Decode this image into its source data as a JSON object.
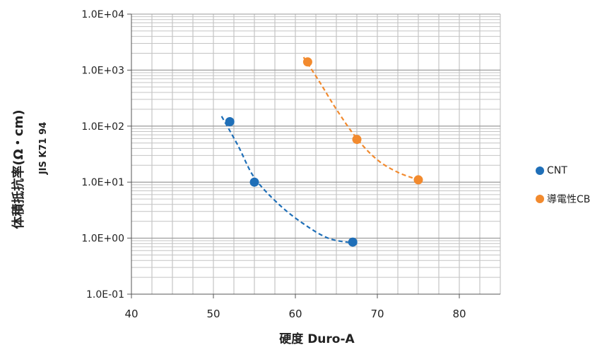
{
  "chart_data": {
    "type": "scatter",
    "ylabel": "体積抵抗率(Ω・cm)",
    "ylabel_sub": "JIS K71 94",
    "xlabel": "硬度 Duro-A",
    "xlim": [
      40,
      85
    ],
    "ylim": [
      0.1,
      10000
    ],
    "yscale": "log",
    "x_ticks": [
      "40",
      "50",
      "60",
      "70",
      "80"
    ],
    "y_ticks": [
      "1.0E-01",
      "1.0E+00",
      "1.0E+01",
      "1.0E+02",
      "1.0E+03",
      "1.0E+04"
    ],
    "grid": true,
    "legend_position": "right",
    "series": [
      {
        "name": "CNT",
        "color": "#1f6fb8",
        "points": [
          [
            52,
            120
          ],
          [
            55,
            10
          ],
          [
            67,
            0.85
          ]
        ],
        "trend": [
          [
            51,
            150
          ],
          [
            53,
            45
          ],
          [
            55,
            12
          ],
          [
            58,
            4
          ],
          [
            61,
            1.8
          ],
          [
            64,
            1.0
          ],
          [
            67,
            0.82
          ]
        ]
      },
      {
        "name": "導電性CB",
        "color": "#f28a2e",
        "points": [
          [
            61.5,
            1400
          ],
          [
            67.5,
            58
          ],
          [
            75,
            11
          ]
        ],
        "trend": [
          [
            61,
            1700
          ],
          [
            63,
            600
          ],
          [
            65,
            200
          ],
          [
            67.5,
            60
          ],
          [
            70,
            25
          ],
          [
            72.5,
            15
          ],
          [
            75,
            11
          ]
        ]
      }
    ]
  }
}
